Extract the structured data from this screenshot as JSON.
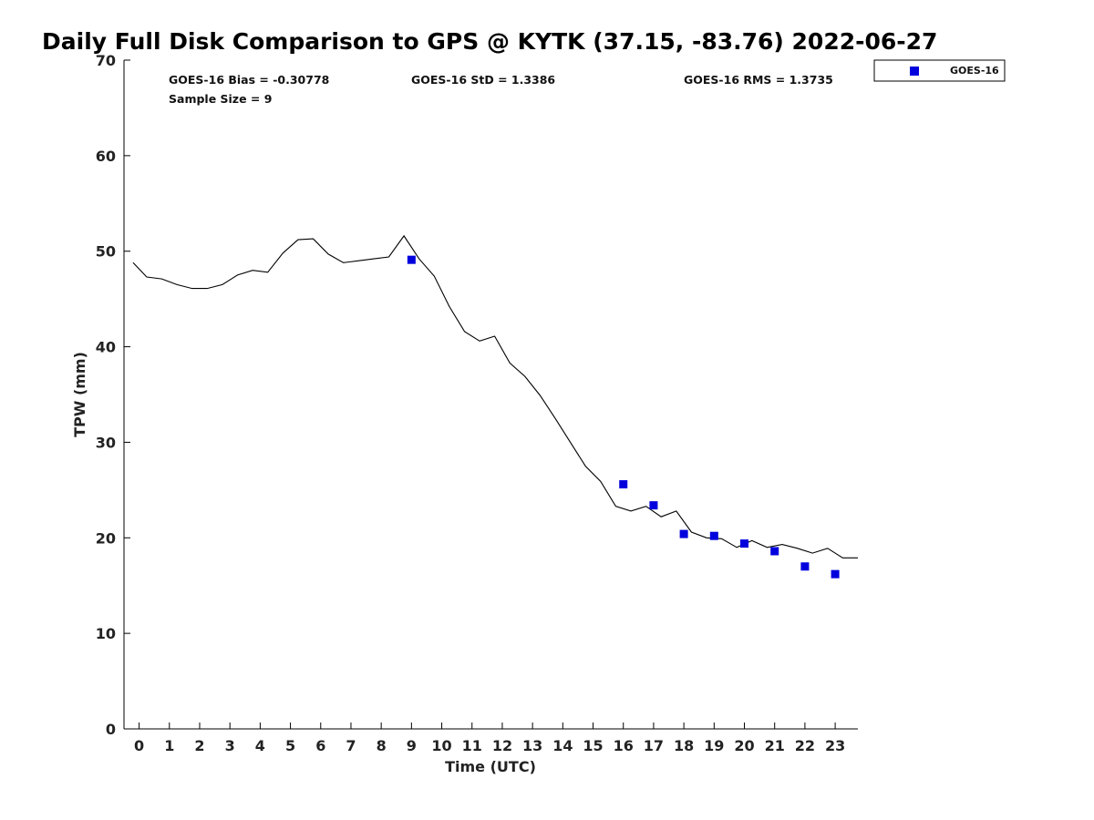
{
  "chart_data": {
    "type": "line",
    "title": "Daily Full Disk Comparison to GPS @ KYTK (37.15, -83.76) 2022-06-27",
    "xlabel": "Time (UTC)",
    "ylabel": "TPW (mm)",
    "xlim": [
      -0.5,
      23.75
    ],
    "ylim": [
      0,
      70
    ],
    "x_ticks": [
      0,
      1,
      2,
      3,
      4,
      5,
      6,
      7,
      8,
      9,
      10,
      11,
      12,
      13,
      14,
      15,
      16,
      17,
      18,
      19,
      20,
      21,
      22,
      23
    ],
    "y_ticks": [
      0,
      10,
      20,
      30,
      40,
      50,
      60,
      70
    ],
    "grid": false,
    "legend_position": "top-right",
    "stats": {
      "bias": "GOES-16 Bias = -0.30778",
      "std": "GOES-16 StD = 1.3386",
      "rms": "GOES-16 RMS = 1.3735",
      "sample": "Sample Size = 9"
    },
    "series": [
      {
        "type": "line",
        "color": "#000000",
        "x": [
          -0.2,
          0.25,
          0.75,
          1.25,
          1.75,
          2.25,
          2.75,
          3.25,
          3.75,
          4.25,
          4.75,
          5.25,
          5.75,
          6.25,
          6.75,
          7.25,
          7.75,
          8.25,
          8.75,
          9.25,
          9.75,
          10.25,
          10.75,
          11.25,
          11.75,
          12.25,
          12.75,
          13.25,
          13.75,
          14.25,
          14.75,
          15.25,
          15.75,
          16.25,
          16.75,
          17.25,
          17.75,
          18.25,
          18.75,
          19.25,
          19.75,
          20.25,
          20.75,
          21.25,
          21.75,
          22.25,
          22.75,
          23.25,
          23.75
        ],
        "y": [
          48.8,
          47.3,
          47.1,
          46.5,
          46.1,
          46.1,
          46.5,
          47.5,
          48.0,
          47.8,
          49.8,
          51.2,
          51.3,
          49.7,
          48.8,
          49.0,
          49.2,
          49.4,
          51.6,
          49.2,
          47.4,
          44.2,
          41.6,
          40.6,
          41.1,
          38.3,
          36.9,
          34.9,
          32.5,
          30.0,
          27.5,
          25.9,
          23.3,
          22.8,
          23.3,
          22.2,
          22.8,
          20.6,
          20.0,
          19.9,
          19.0,
          19.7,
          19.0,
          19.3,
          18.9,
          18.4,
          18.9,
          17.9,
          17.9
        ]
      },
      {
        "type": "scatter",
        "name": "GOES-16",
        "color": "#0000dd",
        "x": [
          9,
          16,
          17,
          18,
          19,
          20,
          21,
          22,
          23
        ],
        "y": [
          49.1,
          25.6,
          23.4,
          20.4,
          20.2,
          19.4,
          18.6,
          17.0,
          16.2
        ]
      }
    ]
  }
}
